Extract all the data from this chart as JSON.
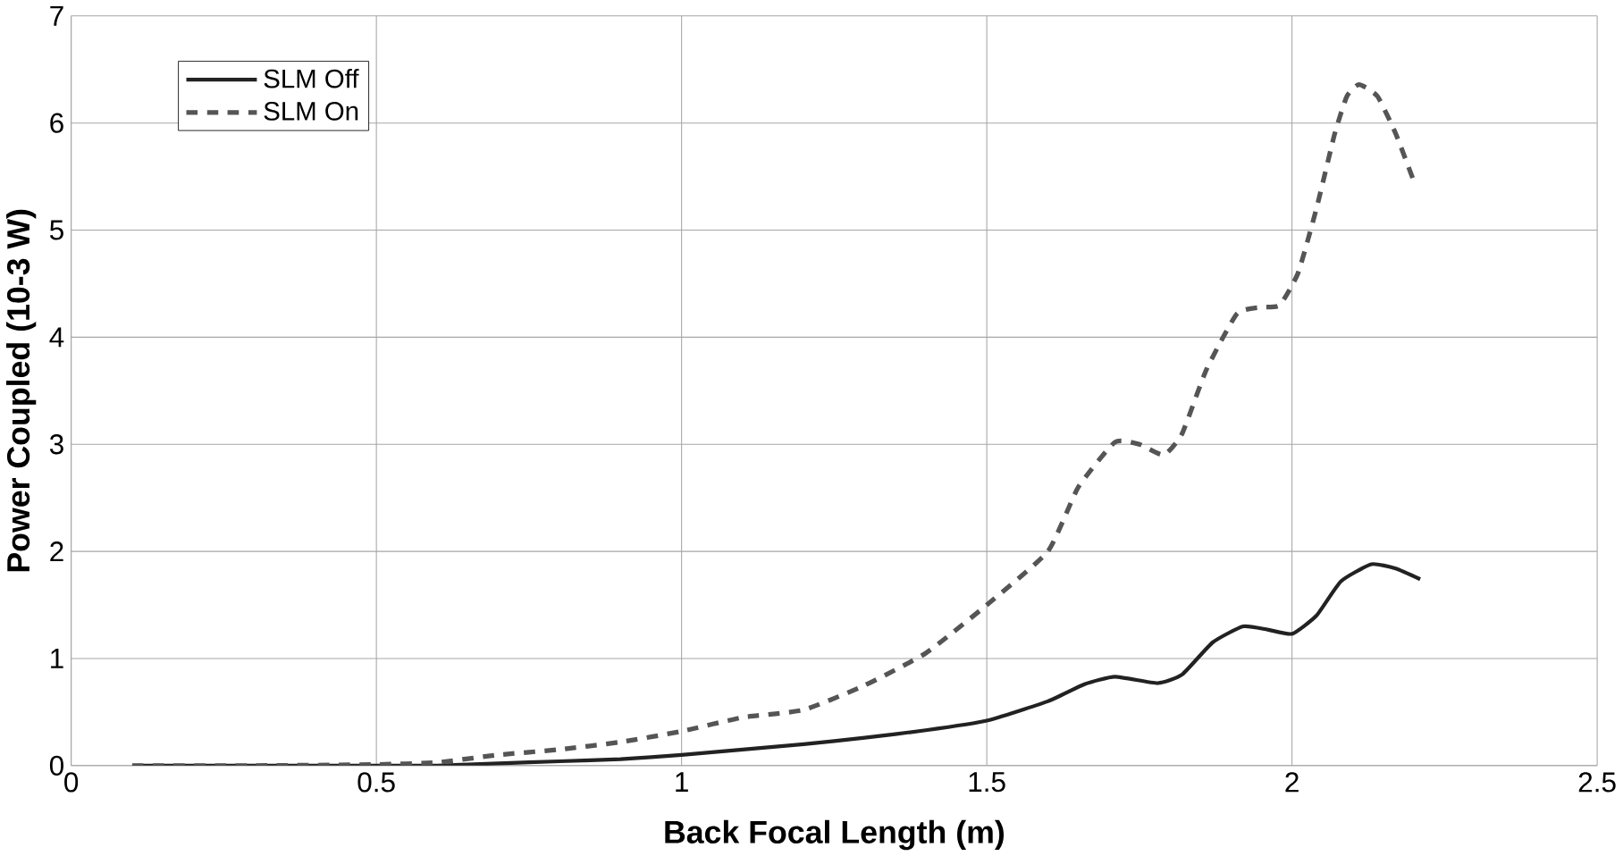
{
  "chart_data": {
    "type": "line",
    "xlabel": "Back Focal Length (m)",
    "ylabel": "Power Coupled (10-3 W)",
    "xlim": [
      0,
      2.5
    ],
    "ylim": [
      0,
      7
    ],
    "xticks": [
      0,
      0.5,
      1,
      1.5,
      2,
      2.5
    ],
    "yticks": [
      0,
      1,
      2,
      3,
      4,
      5,
      6,
      7
    ],
    "grid": true,
    "legend": "top left",
    "series": [
      {
        "name": "SLM Off",
        "color": "#222222",
        "line_style": "solid",
        "x": [
          0.1,
          0.3,
          0.5,
          0.6,
          0.7,
          0.8,
          0.9,
          1.0,
          1.1,
          1.2,
          1.3,
          1.4,
          1.5,
          1.6,
          1.66,
          1.71,
          1.78,
          1.82,
          1.87,
          1.92,
          1.96,
          2.0,
          2.04,
          2.08,
          2.13,
          2.17,
          2.21
        ],
        "values": [
          0,
          0,
          0,
          0,
          0.02,
          0.04,
          0.06,
          0.1,
          0.15,
          0.2,
          0.26,
          0.33,
          0.42,
          0.6,
          0.76,
          0.83,
          0.77,
          0.85,
          1.15,
          1.3,
          1.27,
          1.23,
          1.4,
          1.72,
          1.88,
          1.84,
          1.74
        ]
      },
      {
        "name": "SLM On",
        "color": "#555555",
        "line_style": "dashed",
        "x": [
          0.1,
          0.3,
          0.5,
          0.6,
          0.7,
          0.8,
          0.9,
          1.0,
          1.1,
          1.2,
          1.3,
          1.4,
          1.5,
          1.6,
          1.65,
          1.71,
          1.75,
          1.79,
          1.82,
          1.86,
          1.91,
          1.95,
          1.98,
          2.01,
          2.04,
          2.07,
          2.09,
          2.11,
          2.14,
          2.17,
          2.2
        ],
        "values": [
          0,
          0,
          0.01,
          0.03,
          0.1,
          0.15,
          0.22,
          0.32,
          0.45,
          0.52,
          0.75,
          1.05,
          1.5,
          2.0,
          2.6,
          3.02,
          3.0,
          2.9,
          3.1,
          3.7,
          4.22,
          4.28,
          4.3,
          4.6,
          5.2,
          5.9,
          6.25,
          6.36,
          6.25,
          5.9,
          5.45
        ]
      }
    ]
  }
}
